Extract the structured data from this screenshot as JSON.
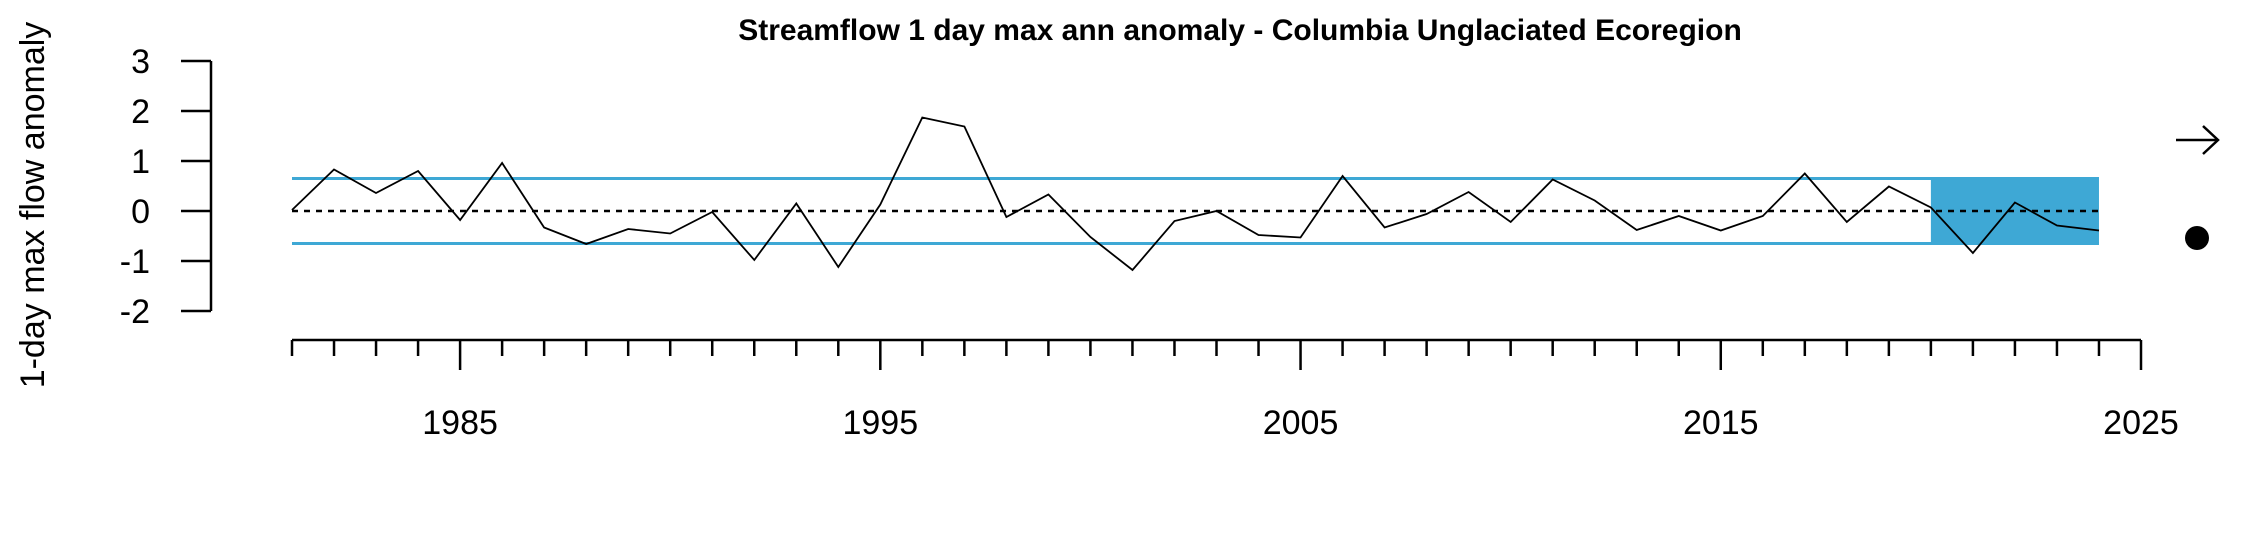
{
  "chart_data": {
    "type": "line",
    "title": "Streamflow 1 day max ann anomaly - Columbia Unglaciated Ecoregion",
    "xlabel": "",
    "ylabel": "1-day max flow anomaly",
    "xlim": [
      1981,
      2025
    ],
    "ylim": [
      -2,
      3
    ],
    "x_tick_labels": [
      "1985",
      "1995",
      "2005",
      "2015",
      "2025"
    ],
    "x_tick_values": [
      1985,
      1995,
      2005,
      2015,
      2025
    ],
    "y_tick_labels": [
      "3",
      "2",
      "1",
      "0",
      "-1",
      "-2"
    ],
    "y_tick_values": [
      3,
      2,
      1,
      0,
      -1,
      -2
    ],
    "x": [
      1981,
      1982,
      1983,
      1984,
      1985,
      1986,
      1987,
      1988,
      1989,
      1990,
      1991,
      1992,
      1993,
      1994,
      1995,
      1996,
      1997,
      1998,
      1999,
      2000,
      2001,
      2002,
      2003,
      2004,
      2005,
      2006,
      2007,
      2008,
      2009,
      2010,
      2011,
      2012,
      2013,
      2014,
      2015,
      2016,
      2017,
      2018,
      2019,
      2020,
      2021,
      2022,
      2023,
      2024
    ],
    "series": [
      {
        "name": "anomaly",
        "values": [
          0.02,
          0.83,
          0.36,
          0.8,
          -0.18,
          0.96,
          -0.33,
          -0.66,
          -0.36,
          -0.45,
          -0.02,
          -0.98,
          0.15,
          -1.12,
          0.13,
          1.87,
          1.69,
          -0.12,
          0.33,
          -0.52,
          -1.18,
          -0.2,
          0.0,
          -0.48,
          -0.53,
          0.7,
          -0.33,
          -0.06,
          0.38,
          -0.22,
          0.63,
          0.21,
          -0.38,
          -0.1,
          -0.39,
          -0.1,
          0.75,
          -0.22,
          0.49,
          0.07,
          -0.84,
          0.17,
          -0.29,
          -0.39
        ]
      }
    ],
    "reference_line": 0,
    "band_lines": [
      0.65,
      -0.65
    ],
    "shaded_region": {
      "x_start": 2020,
      "x_end": 2024,
      "y_low": -0.65,
      "y_high": 0.65
    },
    "legend_symbols": [
      "right-arrow-symbol",
      "filled-circle-symbol"
    ],
    "colors": {
      "band": "#3EA8D5",
      "line": "#000000",
      "reference": "#000000"
    }
  }
}
